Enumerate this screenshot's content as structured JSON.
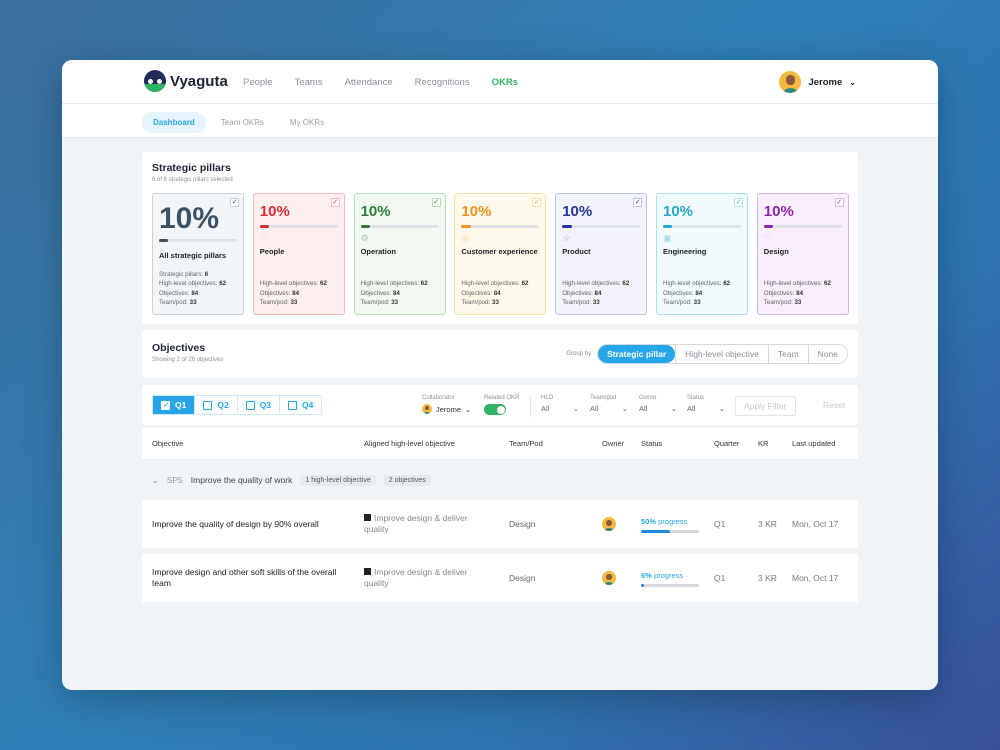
{
  "app": {
    "name": "Vyaguta"
  },
  "nav": {
    "items": [
      "People",
      "Teams",
      "Attendance",
      "Recognitions",
      "OKRs"
    ],
    "active": "OKRs"
  },
  "user": {
    "name": "Jerome"
  },
  "subnav": {
    "tabs": [
      "Dashboard",
      "Team OKRs",
      "My OKRs"
    ],
    "active": "Dashboard"
  },
  "pillars": {
    "title": "Strategic pillars",
    "subtitle": "6 of 6 strategic pillars selected",
    "cards": [
      {
        "name": "All strategic pillars",
        "percent": "10%",
        "color": "#3d5466",
        "bg": "#f3f6f9",
        "border": "#c8d2da",
        "icon": "",
        "stats": [
          [
            "Strategic pillars:",
            "6"
          ],
          [
            "High-level objectives:",
            "62"
          ],
          [
            "Objectives:",
            "84"
          ],
          [
            "Team/pod:",
            "33"
          ]
        ]
      },
      {
        "name": "People",
        "percent": "10%",
        "color": "#d32f2f",
        "bg": "#fdeef0",
        "border": "#f5b9bf",
        "icon": "heart-icon",
        "stats": [
          [
            "High-level objectives:",
            "62"
          ],
          [
            "Objectives:",
            "84"
          ],
          [
            "Team/pod:",
            "33"
          ]
        ]
      },
      {
        "name": "Operation",
        "percent": "10%",
        "color": "#2e7d32",
        "bg": "#f2f9f2",
        "border": "#b9dcb9",
        "icon": "gear-icon",
        "stats": [
          [
            "High-level objectives:",
            "62"
          ],
          [
            "Objectives:",
            "84"
          ],
          [
            "Team/pod:",
            "33"
          ]
        ]
      },
      {
        "name": "Customer experience",
        "percent": "10%",
        "color": "#f2921d",
        "bg": "#fff9ec",
        "border": "#fbdca3",
        "icon": "award-icon",
        "stats": [
          [
            "High-level objectives:",
            "62"
          ],
          [
            "Objectives:",
            "84"
          ],
          [
            "Team/pod:",
            "33"
          ]
        ]
      },
      {
        "name": "Product",
        "percent": "10%",
        "color": "#283593",
        "bg": "#f2f3fb",
        "border": "#bcc1e6",
        "icon": "star-icon",
        "stats": [
          [
            "High-level objectives:",
            "62"
          ],
          [
            "Objectives:",
            "84"
          ],
          [
            "Team/pod:",
            "33"
          ]
        ]
      },
      {
        "name": "Engineering",
        "percent": "10%",
        "color": "#26a6c6",
        "bg": "#f1fbfd",
        "border": "#a9e1ee",
        "icon": "chip-icon",
        "stats": [
          [
            "High-level objectives:",
            "62"
          ],
          [
            "Objectives:",
            "84"
          ],
          [
            "Team/pod:",
            "33"
          ]
        ]
      },
      {
        "name": "Design",
        "percent": "10%",
        "color": "#8e24aa",
        "bg": "#f9eefc",
        "border": "#dcb4e8",
        "icon": "heart-icon",
        "stats": [
          [
            "High-level objectives:",
            "62"
          ],
          [
            "Objectives:",
            "84"
          ],
          [
            "Team/pod:",
            "33"
          ]
        ]
      }
    ]
  },
  "objectives": {
    "title": "Objectives",
    "subtitle": "Showing 2 of 26 objectives",
    "group_by": {
      "label": "Group by",
      "options": [
        "Strategic pillar",
        "High-level objective",
        "Team",
        "None"
      ],
      "active": "Strategic pillar"
    }
  },
  "filters": {
    "quarters": [
      {
        "label": "Q1",
        "checked": true
      },
      {
        "label": "Q2",
        "checked": false
      },
      {
        "label": "Q3",
        "checked": false
      },
      {
        "label": "Q4",
        "checked": false
      }
    ],
    "collaborator": {
      "label": "Collaborator",
      "value": "Jerome"
    },
    "related_okr": {
      "label": "Related OKR",
      "on": true
    },
    "hlo": {
      "label": "HLO",
      "value": "All"
    },
    "team_pod": {
      "label": "Team/pod",
      "value": "All"
    },
    "owner": {
      "label": "Owner",
      "value": "All"
    },
    "status": {
      "label": "Status",
      "value": "All"
    },
    "apply_label": "Apply Filter",
    "reset_label": "Reset"
  },
  "table": {
    "columns": [
      "Objective",
      "Aligned high-level objective",
      "Team/Pod",
      "Owner",
      "Status",
      "Quarter",
      "KR",
      "Last updated"
    ],
    "group": {
      "code": "SP5",
      "title": "Improve the quality of work",
      "tags": [
        "1 high-level objective",
        "2 objectives"
      ]
    },
    "rows": [
      {
        "objective": "Improve the quality of design by 90% overall",
        "hlo": "Improve design & deliver quality",
        "team": "Design",
        "progress_pct": "50%",
        "progress_label": "progress",
        "progress": 50,
        "quarter": "Q1",
        "kr": "3 KR",
        "updated": "Mon, Oct 17"
      },
      {
        "objective": "Improve design and other soft skills of the overall team",
        "hlo": "Improve design & deliver quality",
        "team": "Design",
        "progress_pct": "6%",
        "progress_label": "progress",
        "progress": 6,
        "quarter": "Q1",
        "kr": "3 KR",
        "updated": "Mon, Oct 17"
      }
    ]
  }
}
